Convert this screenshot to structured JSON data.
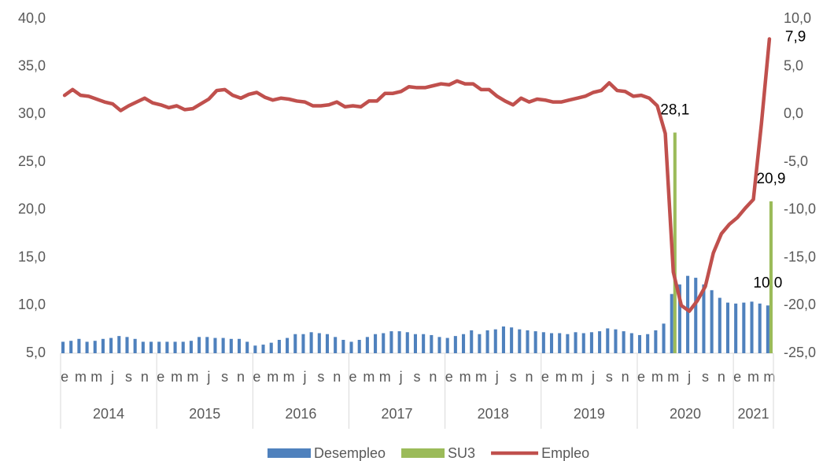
{
  "chart_data": {
    "type": "combo",
    "categories": [
      "e",
      null,
      "m",
      null,
      "m",
      null,
      "j",
      null,
      "s",
      null,
      "n",
      null,
      "e",
      null,
      "m",
      null,
      "m",
      null,
      "j",
      null,
      "s",
      null,
      "n",
      null,
      "e",
      null,
      "m",
      null,
      "m",
      null,
      "j",
      null,
      "s",
      null,
      "n",
      null,
      "e",
      null,
      "m",
      null,
      "m",
      null,
      "j",
      null,
      "s",
      null,
      "n",
      null,
      "e",
      null,
      "m",
      null,
      "m",
      null,
      "j",
      null,
      "s",
      null,
      "n",
      null,
      "e",
      null,
      "m",
      null,
      "m",
      null,
      "j",
      null,
      "s",
      null,
      "n",
      null,
      "e",
      null,
      "m",
      null,
      "m",
      null,
      "j",
      null,
      "s",
      null,
      "n",
      null,
      "e",
      null,
      "m",
      null,
      "m"
    ],
    "groups": [
      "2014",
      null,
      null,
      null,
      null,
      null,
      null,
      null,
      null,
      null,
      null,
      null,
      "2015",
      null,
      null,
      null,
      null,
      null,
      null,
      null,
      null,
      null,
      null,
      null,
      "2016",
      null,
      null,
      null,
      null,
      null,
      null,
      null,
      null,
      null,
      null,
      null,
      "2017",
      null,
      null,
      null,
      null,
      null,
      null,
      null,
      null,
      null,
      null,
      null,
      "2018",
      null,
      null,
      null,
      null,
      null,
      null,
      null,
      null,
      null,
      null,
      null,
      "2019",
      null,
      null,
      null,
      null,
      null,
      null,
      null,
      null,
      null,
      null,
      null,
      "2020",
      null,
      null,
      null,
      null,
      null,
      null,
      null,
      null,
      null,
      null,
      null,
      "2021",
      null,
      null,
      null,
      null
    ],
    "series": [
      {
        "name": "Desempleo",
        "color": "#4f81bd",
        "type": "bar",
        "values": [
          6.2,
          6.3,
          6.5,
          6.2,
          6.3,
          6.5,
          6.6,
          6.8,
          6.7,
          6.5,
          6.2,
          6.2,
          6.2,
          6.2,
          6.2,
          6.2,
          6.3,
          6.7,
          6.7,
          6.6,
          6.6,
          6.5,
          6.5,
          6.2,
          5.8,
          5.9,
          6.1,
          6.4,
          6.6,
          7.0,
          7.0,
          7.2,
          7.1,
          7.0,
          6.7,
          6.4,
          6.2,
          6.4,
          6.7,
          7.0,
          7.1,
          7.3,
          7.3,
          7.2,
          7.0,
          7.0,
          6.9,
          6.7,
          6.6,
          6.8,
          7.0,
          7.4,
          7.0,
          7.4,
          7.5,
          7.8,
          7.7,
          7.5,
          7.4,
          7.3,
          7.2,
          7.1,
          7.1,
          7.0,
          7.2,
          7.1,
          7.2,
          7.3,
          7.6,
          7.5,
          7.3,
          7.1,
          6.9,
          7.0,
          7.4,
          8.1,
          11.2,
          12.2,
          13.1,
          12.9,
          12.2,
          11.6,
          10.8,
          10.3,
          10.2,
          10.3,
          10.4,
          10.2,
          10.0
        ],
        "value_labels": [
          null,
          null,
          null,
          null,
          null,
          null,
          null,
          null,
          null,
          null,
          null,
          null,
          null,
          null,
          null,
          null,
          null,
          null,
          null,
          null,
          null,
          null,
          null,
          null,
          null,
          null,
          null,
          null,
          null,
          null,
          null,
          null,
          null,
          null,
          null,
          null,
          null,
          null,
          null,
          null,
          null,
          null,
          null,
          null,
          null,
          null,
          null,
          null,
          null,
          null,
          null,
          null,
          null,
          null,
          null,
          null,
          null,
          null,
          null,
          null,
          null,
          null,
          null,
          null,
          null,
          null,
          null,
          null,
          null,
          null,
          null,
          null,
          null,
          null,
          null,
          null,
          null,
          null,
          null,
          null,
          null,
          null,
          null,
          null,
          null,
          null,
          null,
          null,
          "10,0"
        ]
      },
      {
        "name": "SU3",
        "color": "#9bbb59",
        "type": "bar",
        "values": [
          null,
          null,
          null,
          null,
          null,
          null,
          null,
          null,
          null,
          null,
          null,
          null,
          null,
          null,
          null,
          null,
          null,
          null,
          null,
          null,
          null,
          null,
          null,
          null,
          null,
          null,
          null,
          null,
          null,
          null,
          null,
          null,
          null,
          null,
          null,
          null,
          null,
          null,
          null,
          null,
          null,
          null,
          null,
          null,
          null,
          null,
          null,
          null,
          null,
          null,
          null,
          null,
          null,
          null,
          null,
          null,
          null,
          null,
          null,
          null,
          null,
          null,
          null,
          null,
          null,
          null,
          null,
          null,
          null,
          null,
          null,
          null,
          null,
          null,
          null,
          null,
          28.1,
          null,
          null,
          null,
          null,
          null,
          null,
          null,
          null,
          null,
          null,
          null,
          20.9
        ],
        "value_labels": [
          null,
          null,
          null,
          null,
          null,
          null,
          null,
          null,
          null,
          null,
          null,
          null,
          null,
          null,
          null,
          null,
          null,
          null,
          null,
          null,
          null,
          null,
          null,
          null,
          null,
          null,
          null,
          null,
          null,
          null,
          null,
          null,
          null,
          null,
          null,
          null,
          null,
          null,
          null,
          null,
          null,
          null,
          null,
          null,
          null,
          null,
          null,
          null,
          null,
          null,
          null,
          null,
          null,
          null,
          null,
          null,
          null,
          null,
          null,
          null,
          null,
          null,
          null,
          null,
          null,
          null,
          null,
          null,
          null,
          null,
          null,
          null,
          null,
          null,
          null,
          null,
          "28,1",
          null,
          null,
          null,
          null,
          null,
          null,
          null,
          null,
          null,
          null,
          null,
          "20,9"
        ]
      },
      {
        "name": "Empleo",
        "color": "#c0504d",
        "type": "line",
        "axis": "y2",
        "values": [
          2.0,
          2.6,
          2.0,
          1.9,
          1.6,
          1.3,
          1.1,
          0.4,
          0.9,
          1.3,
          1.7,
          1.2,
          1.0,
          0.7,
          0.9,
          0.5,
          0.6,
          1.1,
          1.6,
          2.5,
          2.6,
          2.0,
          1.7,
          2.1,
          2.3,
          1.8,
          1.5,
          1.7,
          1.6,
          1.4,
          1.3,
          0.9,
          0.9,
          1.0,
          1.3,
          0.8,
          0.9,
          0.8,
          1.4,
          1.4,
          2.2,
          2.2,
          2.4,
          2.9,
          2.8,
          2.8,
          3.0,
          3.2,
          3.1,
          3.5,
          3.2,
          3.2,
          2.6,
          2.6,
          1.9,
          1.4,
          1.0,
          1.7,
          1.3,
          1.6,
          1.5,
          1.3,
          1.3,
          1.5,
          1.7,
          1.9,
          2.3,
          2.5,
          3.3,
          2.5,
          2.4,
          1.9,
          2.0,
          1.7,
          0.9,
          -2.0,
          -16.5,
          -20.0,
          -20.6,
          -19.5,
          -18.0,
          -14.5,
          -12.5,
          -11.5,
          -10.8,
          -9.8,
          -8.9,
          -1.0,
          7.9
        ],
        "value_labels": [
          null,
          null,
          null,
          null,
          null,
          null,
          null,
          null,
          null,
          null,
          null,
          null,
          null,
          null,
          null,
          null,
          null,
          null,
          null,
          null,
          null,
          null,
          null,
          null,
          null,
          null,
          null,
          null,
          null,
          null,
          null,
          null,
          null,
          null,
          null,
          null,
          null,
          null,
          null,
          null,
          null,
          null,
          null,
          null,
          null,
          null,
          null,
          null,
          null,
          null,
          null,
          null,
          null,
          null,
          null,
          null,
          null,
          null,
          null,
          null,
          null,
          null,
          null,
          null,
          null,
          null,
          null,
          null,
          null,
          null,
          null,
          null,
          null,
          null,
          null,
          null,
          null,
          null,
          null,
          null,
          null,
          null,
          null,
          null,
          null,
          null,
          null,
          null,
          "7,9"
        ]
      }
    ],
    "ylim": [
      5,
      40
    ],
    "yticks": [
      {
        "value": 5,
        "label": "5,0"
      },
      {
        "value": 10,
        "label": "10,0"
      },
      {
        "value": 15,
        "label": "15,0"
      },
      {
        "value": 20,
        "label": "20,0"
      },
      {
        "value": 25,
        "label": "25,0"
      },
      {
        "value": 30,
        "label": "30,0"
      },
      {
        "value": 35,
        "label": "35,0"
      },
      {
        "value": 40,
        "label": "40,0"
      }
    ],
    "y2lim": [
      -25,
      10
    ],
    "y2ticks": [
      {
        "value": -25,
        "label": "-25,0"
      },
      {
        "value": -20,
        "label": "-20,0"
      },
      {
        "value": -15,
        "label": "-15,0"
      },
      {
        "value": -10,
        "label": "-10,0"
      },
      {
        "value": -5,
        "label": "-5,0"
      },
      {
        "value": 0,
        "label": "0,0"
      },
      {
        "value": 5,
        "label": "5,0"
      },
      {
        "value": 10,
        "label": "10,0"
      }
    ],
    "grid": false,
    "legend": "bottom"
  }
}
